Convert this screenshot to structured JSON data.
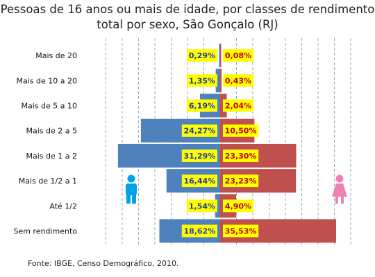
{
  "chart_data": {
    "type": "bar",
    "orientation": "horizontal",
    "layout": "population-pyramid",
    "title_line1": "Pessoas de 16 anos ou mais de idade, por classes de rendimento",
    "title_line2": "total por sexo, São Gonçalo (RJ)",
    "categories": [
      "Mais de 20",
      "Mais de 10 a 20",
      "Mais de 5 a 10",
      "Mais de 2 a 5",
      "Mais de 1 a 2",
      "Mais de 1/2 a 1",
      "Até 1/2",
      "Sem rendimento"
    ],
    "series": [
      {
        "side": "left",
        "values": [
          0.29,
          1.35,
          6.19,
          24.27,
          31.29,
          16.44,
          1.54,
          18.62
        ],
        "labels": [
          "0,29%",
          "1,35%",
          "6,19%",
          "24,27%",
          "31,29%",
          "16,44%",
          "1,54%",
          "18,62%"
        ],
        "color": "#4f81bd",
        "label_color": "#1f3fa0",
        "icon": "man-icon"
      },
      {
        "side": "right",
        "values": [
          0.08,
          0.43,
          2.04,
          10.5,
          23.3,
          23.23,
          4.9,
          35.53
        ],
        "labels": [
          "0,08%",
          "0,43%",
          "2,04%",
          "10,50%",
          "23,30%",
          "23,23%",
          "4,90%",
          "35,53%"
        ],
        "color": "#c0504d",
        "label_color": "#c00000",
        "icon": "woman-icon"
      }
    ],
    "xlim": [
      -40,
      40
    ],
    "grid": true,
    "label_background": "#ffff00",
    "man_icon_color": "#00a2e8",
    "woman_icon_color": "#f081b5"
  },
  "source": "Fonte: IBGE, Censo Demográfico, 2010."
}
